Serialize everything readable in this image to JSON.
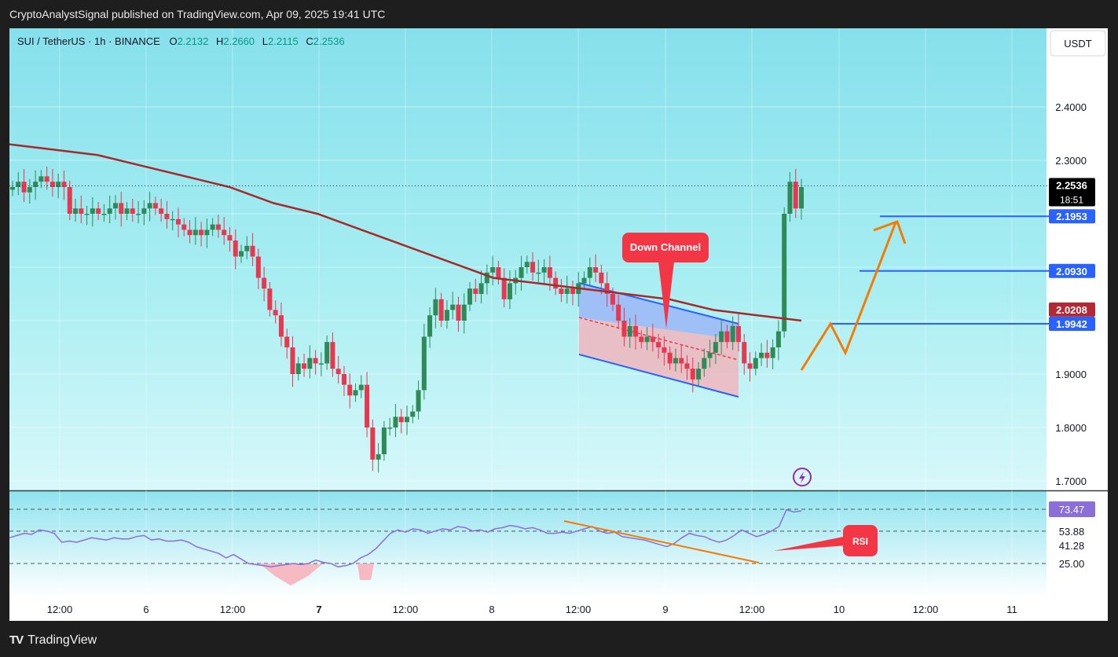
{
  "header": {
    "published_text": "CryptoAnalystSignal published on TradingView.com, Apr 09, 2025 19:41 UTC"
  },
  "symbol": {
    "name": "SUI / TetherUS · 1h · BINANCE",
    "o_label": "O",
    "o": "2.2132",
    "h_label": "H",
    "h": "2.2660",
    "l_label": "L",
    "l": "2.2115",
    "c_label": "C",
    "c": "2.2536"
  },
  "currency_button": "USDT",
  "price_axis": {
    "ticks": [
      "2.4000",
      "2.3000",
      "1.9000",
      "1.8000",
      "1.7000"
    ]
  },
  "price_tags": [
    {
      "label": "2.2536",
      "sub": "18:51",
      "color": "#000000",
      "kind": "last"
    },
    {
      "label": "2.1953",
      "color": "#2962ff",
      "kind": "level"
    },
    {
      "label": "2.0930",
      "color": "#2962ff",
      "kind": "level"
    },
    {
      "label": "2.0208",
      "color": "#b22833",
      "kind": "ma"
    },
    {
      "label": "1.9942",
      "color": "#2962ff",
      "kind": "level"
    }
  ],
  "annotations": {
    "down_channel": "Down Channel",
    "rsi": "RSI"
  },
  "rsi_axis": {
    "current": "73.47",
    "ticks": [
      "53.88",
      "41.28",
      "25.00"
    ]
  },
  "time_axis": {
    "labels": [
      "12:00",
      "6",
      "12:00",
      "7",
      "12:00",
      "8",
      "12:00",
      "9",
      "12:00",
      "10",
      "12:00",
      "11"
    ]
  },
  "footer": {
    "brand": "TradingView"
  },
  "colors": {
    "up": "#2e8b57",
    "down": "#e8374f",
    "ma": "#a52a2a",
    "level": "#2962ff",
    "projection": "#f57c00",
    "rsi": "#8b6fd6"
  },
  "icons": [
    "tradingview-logo-icon",
    "lightning-icon"
  ],
  "chart_data": {
    "type": "candlestick",
    "title": "SUI / TetherUS · 1h · BINANCE",
    "y_range": [
      1.69,
      2.48
    ],
    "x_labels": [
      "12:00",
      "6",
      "12:00",
      "7",
      "12:00",
      "8",
      "12:00",
      "9",
      "12:00",
      "10",
      "12:00",
      "11"
    ],
    "close_series": [
      2.25,
      2.26,
      2.24,
      2.25,
      2.26,
      2.27,
      2.26,
      2.25,
      2.26,
      2.25,
      2.2,
      2.21,
      2.2,
      2.2,
      2.21,
      2.2,
      2.2,
      2.21,
      2.22,
      2.2,
      2.21,
      2.2,
      2.2,
      2.21,
      2.22,
      2.21,
      2.2,
      2.19,
      2.19,
      2.18,
      2.17,
      2.16,
      2.17,
      2.16,
      2.17,
      2.18,
      2.17,
      2.16,
      2.15,
      2.12,
      2.13,
      2.14,
      2.12,
      2.08,
      2.06,
      2.02,
      2.01,
      1.97,
      1.95,
      1.9,
      1.92,
      1.91,
      1.93,
      1.92,
      1.92,
      1.96,
      1.91,
      1.9,
      1.88,
      1.86,
      1.87,
      1.88,
      1.8,
      1.74,
      1.75,
      1.8,
      1.8,
      1.82,
      1.81,
      1.82,
      1.83,
      1.87,
      1.97,
      2.01,
      2.04,
      2.0,
      2.02,
      2.03,
      2.0,
      2.03,
      2.06,
      2.05,
      2.07,
      2.09,
      2.1,
      2.08,
      2.04,
      2.07,
      2.08,
      2.1,
      2.11,
      2.09,
      2.09,
      2.1,
      2.08,
      2.06,
      2.05,
      2.06,
      2.05,
      2.07,
      2.08,
      2.1,
      2.09,
      2.07,
      2.05,
      2.03,
      2.0,
      1.97,
      1.99,
      1.97,
      1.96,
      1.97,
      1.96,
      1.95,
      1.94,
      1.92,
      1.93,
      1.92,
      1.91,
      1.89,
      1.91,
      1.93,
      1.94,
      1.96,
      1.98,
      1.96,
      1.99,
      1.96,
      1.92,
      1.91,
      1.93,
      1.94,
      1.93,
      1.95,
      1.98,
      2.2,
      2.26,
      2.21,
      2.25
    ],
    "ma_series": [
      2.33,
      2.32,
      2.31,
      2.29,
      2.27,
      2.25,
      2.22,
      2.2,
      2.17,
      2.14,
      2.11,
      2.08,
      2.07,
      2.06,
      2.05,
      2.04,
      2.02,
      2.01,
      2.0
    ],
    "levels": [
      2.1953,
      2.093,
      1.9942
    ],
    "last_price": 2.2536,
    "ma_value": 2.0208,
    "rsi": {
      "current": 73.47,
      "levels": [
        73.47,
        53.88,
        41.28,
        25.0
      ],
      "values": [
        48,
        50,
        52,
        51,
        55,
        54,
        52,
        44,
        45,
        44,
        46,
        48,
        47,
        46,
        48,
        47,
        47,
        49,
        50,
        46,
        47,
        45,
        45,
        46,
        44,
        40,
        38,
        36,
        34,
        30,
        33,
        29,
        25,
        24,
        23,
        22,
        23,
        24,
        25,
        24,
        25,
        28,
        26,
        25,
        22,
        23,
        25,
        30,
        33,
        38,
        45,
        52,
        55,
        53,
        56,
        55,
        52,
        54,
        56,
        55,
        58,
        57,
        54,
        55,
        53,
        56,
        57,
        59,
        58,
        56,
        57,
        55,
        52,
        52,
        53,
        52,
        54,
        56,
        58,
        54,
        52,
        53,
        49,
        48,
        47,
        46,
        44,
        42,
        40,
        43,
        48,
        52,
        50,
        49,
        46,
        44,
        46,
        50,
        55,
        52,
        49,
        51,
        54,
        58,
        73,
        71,
        72
      ]
    }
  }
}
